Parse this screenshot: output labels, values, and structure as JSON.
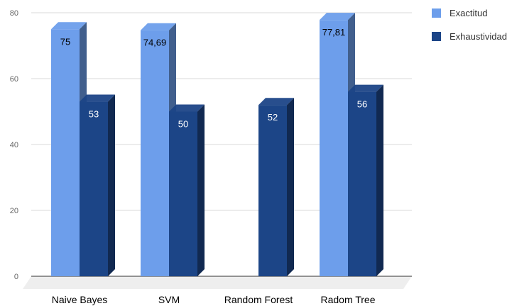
{
  "chart_data": {
    "type": "bar",
    "categories": [
      "Naive Bayes",
      "SVM",
      "Random Forest",
      "Radom Tree"
    ],
    "series": [
      {
        "name": "Exactitud",
        "values": [
          75,
          74.69,
          null,
          77.81
        ],
        "labels": [
          "75",
          "74,69",
          "",
          "77,81"
        ],
        "color": "#6d9eeb"
      },
      {
        "name": "Exhaustividad",
        "values": [
          53,
          50,
          52,
          56
        ],
        "labels": [
          "53",
          "50",
          "52",
          "56"
        ],
        "color": "#1c4587"
      }
    ],
    "y_ticks": [
      "0",
      "20",
      "40",
      "60",
      "80"
    ],
    "ylim": [
      0,
      80
    ],
    "grid": true,
    "legend_position": "top-right",
    "style": "3d-columns"
  }
}
